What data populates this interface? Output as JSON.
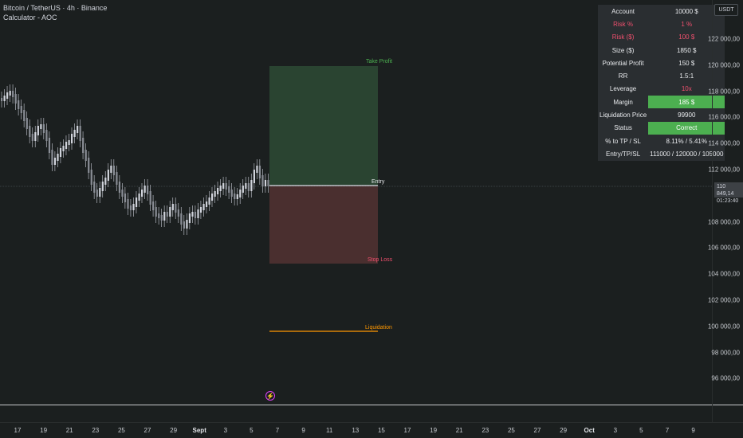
{
  "header": {
    "symbol_line": "Bitcoin / TetherUS · 4h · Binance",
    "indicator_line": "Calculator - AOC"
  },
  "price_axis": {
    "currency_badge": "USDT",
    "ticks": [
      "122 000,00",
      "120 000,00",
      "118 000,00",
      "116 000,00",
      "114 000,00",
      "112 000,00",
      "108 000,00",
      "106 000,00",
      "104 000,00",
      "102 000,00",
      "100 000,00",
      "98 000,00",
      "96 000,00"
    ],
    "current_price": "110 849,14",
    "countdown": "01:23:40"
  },
  "time_axis": {
    "ticks": [
      "17",
      "19",
      "21",
      "23",
      "25",
      "27",
      "29",
      "Sept",
      "3",
      "5",
      "7",
      "9",
      "11",
      "13",
      "15",
      "17",
      "19",
      "21",
      "23",
      "25",
      "27",
      "29",
      "Oct",
      "3",
      "5",
      "7",
      "9"
    ],
    "bold": [
      "Sept",
      "Oct"
    ]
  },
  "position_tool": {
    "entry": 111000,
    "take_profit": 120000,
    "stop_loss": 105000,
    "liquidation": 99900,
    "labels": {
      "take_profit": "Take Profit",
      "entry": "Entry",
      "stop_loss": "Stop Loss",
      "liquidation": "Liquidation"
    }
  },
  "info_table": {
    "rows": [
      {
        "label": "Account",
        "value": "10000 $",
        "style": ""
      },
      {
        "label": "Risk %",
        "value": "1 %",
        "style": "warn"
      },
      {
        "label": "Risk ($)",
        "value": "100 $",
        "style": "warn"
      },
      {
        "label": "Size ($)",
        "value": "1850 $",
        "style": ""
      },
      {
        "label": "Potential Profit",
        "value": "150 $",
        "style": ""
      },
      {
        "label": "RR",
        "value": "1.5:1",
        "style": ""
      },
      {
        "label": "Leverage",
        "value": "10x",
        "style": "warn-value"
      },
      {
        "label": "Margin",
        "value": "185 $",
        "style": "ok"
      },
      {
        "label": "Liquidation Price",
        "value": "99900",
        "style": ""
      },
      {
        "label": "Status",
        "value": "Correct",
        "style": "ok"
      },
      {
        "label": "% to TP / SL",
        "value": "8.11% / 5.41%",
        "style": ""
      },
      {
        "label": "Entry/TP/SL",
        "value": "111000 / 120000 / 105000",
        "style": ""
      }
    ]
  },
  "colors": {
    "background": "#1b1f1f",
    "profit_zone": "#2a4431",
    "loss_zone": "#4a2f2f",
    "take_profit_text": "#4caf50",
    "stop_loss_text": "#f0506e",
    "liquidation": "#ff9800",
    "candles": "#b2b5be"
  },
  "icons": {
    "alert": "lightning-icon"
  }
}
